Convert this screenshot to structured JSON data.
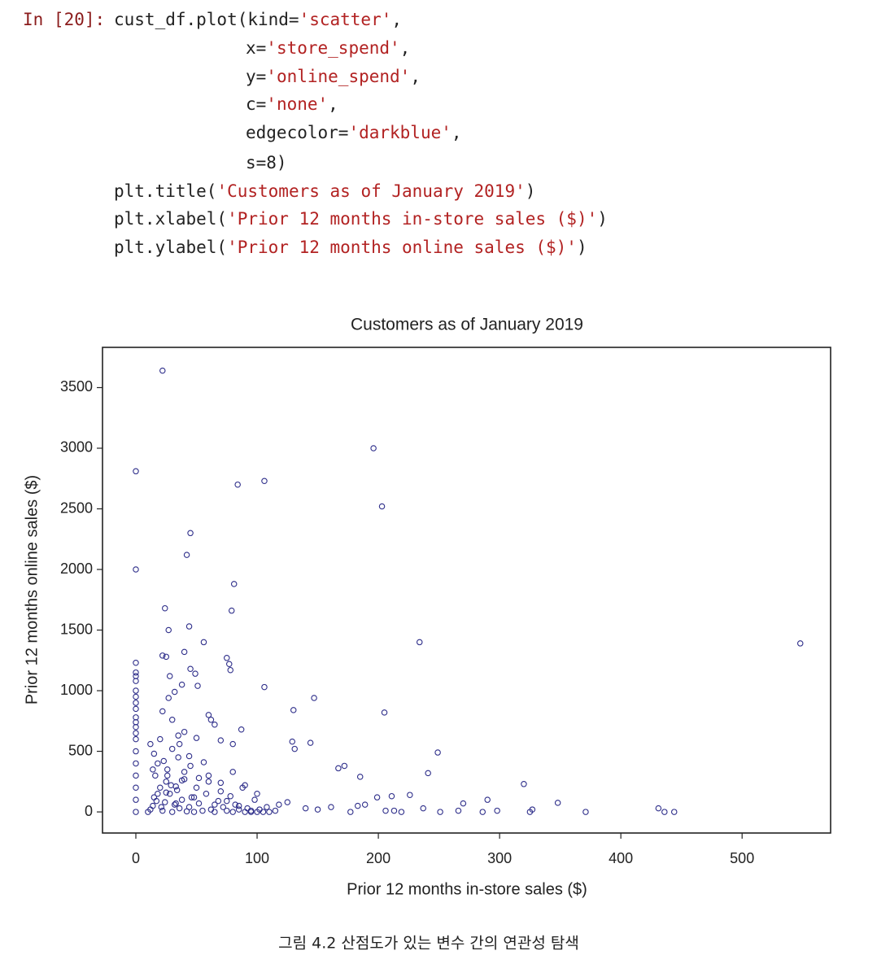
{
  "code": {
    "prompt": "In [20]:",
    "lines": [
      "cust_df.plot(kind='scatter',",
      "x='store_spend',",
      "y='online_spend',",
      "c='none',",
      "edgecolor='darkblue',",
      "s=8)",
      "plt.title('Customers as of January 2019')",
      "plt.xlabel('Prior 12 months in-store sales ($)')",
      "plt.ylabel('Prior 12 months online sales ($)')"
    ]
  },
  "chart_data": {
    "type": "scatter",
    "title": "Customers as of January 2019",
    "xlabel": "Prior 12 months in-store sales ($)",
    "ylabel": "Prior 12 months online sales ($)",
    "xlim": [
      -27.5,
      573
    ],
    "ylim": [
      -174,
      3832
    ],
    "xticks": [
      0,
      100,
      200,
      300,
      400,
      500
    ],
    "yticks": [
      0,
      500,
      1000,
      1500,
      2000,
      2500,
      3000,
      3500
    ],
    "grid": false,
    "series": [
      {
        "color": "#2e2e8a",
        "x": [
          22,
          0,
          0,
          196,
          84,
          106,
          203,
          45,
          42,
          81,
          24,
          79,
          27,
          44,
          56,
          234,
          548,
          22,
          25,
          40,
          75,
          77,
          78,
          45,
          49,
          28,
          51,
          38,
          32,
          27,
          106,
          147,
          130,
          205,
          22,
          30,
          60,
          62,
          65,
          87,
          40,
          35,
          50,
          70,
          80,
          129,
          131,
          144,
          249,
          167,
          172,
          185,
          241,
          320,
          348,
          290,
          270,
          226,
          211,
          199,
          189,
          237,
          251,
          266,
          298,
          286,
          327,
          325,
          371,
          431,
          436,
          444,
          213,
          206,
          219,
          177,
          183,
          161,
          150,
          140,
          125,
          118,
          0,
          0,
          0,
          0,
          0,
          0,
          0,
          0,
          0,
          0,
          0,
          0,
          0,
          0,
          0,
          0,
          0,
          0,
          0,
          10,
          12,
          14,
          15,
          16,
          18,
          20,
          22,
          24,
          25,
          26,
          28,
          30,
          32,
          34,
          35,
          36,
          38,
          40,
          42,
          44,
          45,
          46,
          48,
          50,
          52,
          55,
          58,
          60,
          62,
          65,
          68,
          70,
          72,
          75,
          78,
          80,
          82,
          85,
          88,
          90,
          92,
          95,
          98,
          100,
          102,
          105,
          108,
          110,
          115,
          12,
          15,
          18,
          20,
          23,
          26,
          30,
          33,
          36,
          40,
          44,
          48,
          52,
          56,
          60,
          65,
          70,
          75,
          80,
          85,
          90,
          95,
          100,
          14,
          17,
          21,
          25,
          29,
          33,
          38
        ],
        "values": [
          3640,
          2810,
          2000,
          3000,
          2700,
          2730,
          2520,
          2300,
          2120,
          1880,
          1680,
          1660,
          1500,
          1530,
          1400,
          1400,
          1390,
          1290,
          1280,
          1320,
          1270,
          1220,
          1170,
          1180,
          1140,
          1120,
          1040,
          1050,
          990,
          940,
          1030,
          940,
          840,
          820,
          830,
          760,
          800,
          760,
          720,
          680,
          660,
          630,
          610,
          590,
          560,
          580,
          520,
          570,
          490,
          360,
          380,
          290,
          320,
          230,
          75,
          100,
          70,
          140,
          130,
          120,
          60,
          30,
          0,
          10,
          10,
          0,
          20,
          0,
          0,
          30,
          0,
          0,
          10,
          10,
          0,
          0,
          50,
          40,
          20,
          30,
          80,
          60,
          1230,
          1150,
          1120,
          1080,
          1000,
          950,
          900,
          850,
          780,
          740,
          700,
          650,
          600,
          500,
          400,
          300,
          200,
          100,
          0,
          0,
          20,
          50,
          120,
          300,
          400,
          200,
          10,
          80,
          250,
          350,
          150,
          0,
          60,
          180,
          450,
          30,
          100,
          270,
          5,
          40,
          380,
          120,
          0,
          200,
          70,
          10,
          150,
          300,
          20,
          0,
          90,
          240,
          40,
          10,
          130,
          0,
          60,
          20,
          200,
          0,
          30,
          10,
          100,
          0,
          20,
          0,
          40,
          0,
          10,
          560,
          480,
          150,
          600,
          420,
          300,
          520,
          210,
          560,
          330,
          460,
          120,
          280,
          410,
          250,
          60,
          170,
          90,
          330,
          50,
          220,
          0,
          150,
          350,
          90,
          40,
          160,
          220,
          70,
          260
        ]
      }
    ]
  },
  "caption": "그림 4.2 산점도가 있는 변수 간의 연관성 탐색"
}
